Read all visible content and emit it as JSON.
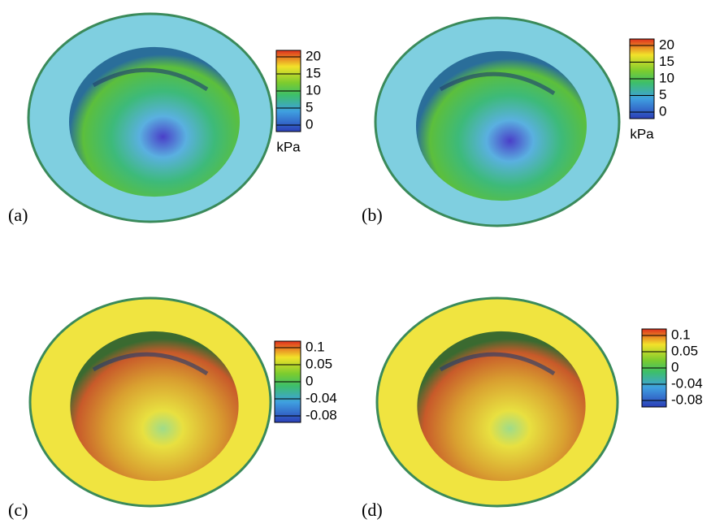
{
  "panels": [
    {
      "label": "(a)",
      "colorbar": {
        "ticks": [
          "20",
          "15",
          "10",
          "5",
          "0"
        ],
        "unit": "kPa"
      }
    },
    {
      "label": "(b)",
      "colorbar": {
        "ticks": [
          "20",
          "15",
          "10",
          "5",
          "0"
        ],
        "unit": "kPa"
      }
    },
    {
      "label": "(c)",
      "colorbar": {
        "ticks": [
          "0.1",
          "0.05",
          "0",
          "-0.04",
          "-0.08"
        ]
      }
    },
    {
      "label": "(d)",
      "colorbar": {
        "ticks": [
          "0.1",
          "0.05",
          "0",
          "-0.04",
          "-0.08"
        ]
      }
    }
  ]
}
